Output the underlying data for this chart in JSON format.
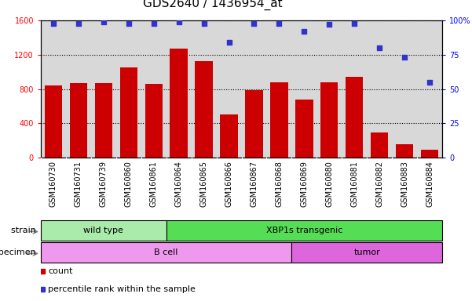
{
  "title": "GDS2640 / 1436954_at",
  "samples": [
    "GSM160730",
    "GSM160731",
    "GSM160739",
    "GSM160860",
    "GSM160861",
    "GSM160864",
    "GSM160865",
    "GSM160866",
    "GSM160867",
    "GSM160868",
    "GSM160869",
    "GSM160880",
    "GSM160881",
    "GSM160882",
    "GSM160883",
    "GSM160884"
  ],
  "counts": [
    840,
    870,
    870,
    1050,
    860,
    1270,
    1130,
    500,
    790,
    880,
    680,
    880,
    940,
    290,
    160,
    90
  ],
  "percentiles": [
    98,
    98,
    99,
    98,
    98,
    99,
    98,
    84,
    98,
    98,
    92,
    97,
    98,
    80,
    73,
    55
  ],
  "bar_color": "#cc0000",
  "dot_color": "#3333cc",
  "ylim_left": [
    0,
    1600
  ],
  "ylim_right": [
    0,
    100
  ],
  "yticks_left": [
    0,
    400,
    800,
    1200,
    1600
  ],
  "yticks_right": [
    0,
    25,
    50,
    75,
    100
  ],
  "ytick_labels_right": [
    "0",
    "25",
    "50",
    "75",
    "100%"
  ],
  "strain_groups": [
    {
      "label": "wild type",
      "start": 0,
      "end": 5,
      "color": "#aaeaaa"
    },
    {
      "label": "XBP1s transgenic",
      "start": 5,
      "end": 16,
      "color": "#55dd55"
    }
  ],
  "specimen_groups": [
    {
      "label": "B cell",
      "start": 0,
      "end": 10,
      "color": "#ee99ee"
    },
    {
      "label": "tumor",
      "start": 10,
      "end": 16,
      "color": "#dd66dd"
    }
  ],
  "strain_label": "strain",
  "specimen_label": "specimen",
  "legend_count_label": "count",
  "legend_pct_label": "percentile rank within the sample",
  "bg_color": "#ffffff",
  "plot_bg_color": "#d8d8d8",
  "xtick_bg_color": "#d8d8d8",
  "title_fontsize": 11,
  "tick_label_fontsize": 7,
  "annotation_fontsize": 8,
  "legend_fontsize": 8
}
